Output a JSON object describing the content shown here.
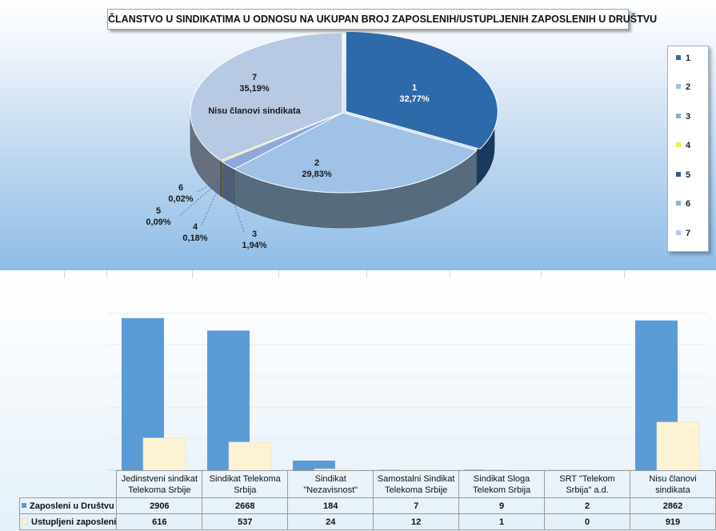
{
  "chart_data": [
    {
      "type": "pie",
      "title": "ČLANSTVO U SINDIKATIMA U ODNOSU NA UKUPAN BROJ ZAPOSLENIH/USTUPLJENIH ZAPOSLENIH U DRUŠTVU",
      "legend_position": "right",
      "slices": [
        {
          "label": "1",
          "value": 32.77,
          "percent_text": "32,77%",
          "color": "#2e6aa9"
        },
        {
          "label": "2",
          "value": 29.83,
          "percent_text": "29,83%",
          "color": "#9fc2e6"
        },
        {
          "label": "3",
          "value": 1.94,
          "percent_text": "1,94%",
          "color": "#8fa9dc"
        },
        {
          "label": "4",
          "value": 0.18,
          "percent_text": "0,18%",
          "color": "#f2f24a"
        },
        {
          "label": "5",
          "value": 0.09,
          "percent_text": "0,09%",
          "color": "#2d5f99"
        },
        {
          "label": "6",
          "value": 0.02,
          "percent_text": "0,02%",
          "color": "#8eaede"
        },
        {
          "label": "7",
          "value": 35.19,
          "percent_text": "35,19%",
          "color": "#b8c9e3",
          "annotation": "Nisu članovi sindikata"
        }
      ]
    },
    {
      "type": "bar",
      "categories": [
        [
          "Jedinstveni sindikat",
          "Telekoma Srbije"
        ],
        [
          "Sindikat Telekoma",
          "Srbija"
        ],
        [
          "Sindikat",
          "\"Nezavisnost\""
        ],
        [
          "Samostalni Sindikat",
          "Telekoma Srbije"
        ],
        [
          "Sindikat Sloga",
          "Telekom Srbija"
        ],
        [
          "SRT \"Telekom",
          "Srbija\" a.d."
        ],
        [
          "Nisu članovi",
          "sindikata"
        ]
      ],
      "ylim": [
        0,
        3300
      ],
      "series": [
        {
          "name": "Zaposleni u Društvu",
          "color": "#5b9bd5",
          "values": [
            2906,
            2668,
            184,
            7,
            9,
            2,
            2862
          ]
        },
        {
          "name": "Ustupljeni zaposleni",
          "color": "#fdf2d4",
          "values": [
            616,
            537,
            24,
            12,
            1,
            0,
            919
          ]
        }
      ]
    }
  ]
}
